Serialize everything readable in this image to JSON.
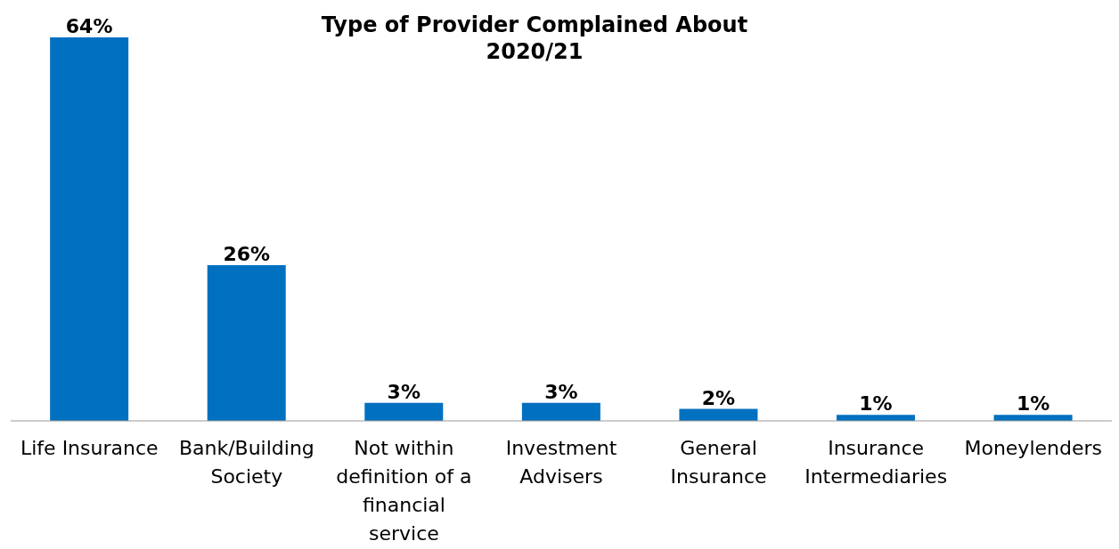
{
  "chart_data": {
    "type": "bar",
    "title": "Type of Provider Complained About\n2020/21",
    "categories": [
      "Life Insurance",
      "Bank/Building Society",
      "Not within definition of a financial service",
      "Investment Advisers",
      "General Insurance",
      "Insurance Intermediaries",
      "Moneylenders"
    ],
    "values": [
      64,
      26,
      3,
      3,
      2,
      1,
      1
    ],
    "value_labels": [
      "64%",
      "26%",
      "3%",
      "3%",
      "2%",
      "1%",
      "1%"
    ],
    "color": "#0070c0",
    "grid": false
  }
}
